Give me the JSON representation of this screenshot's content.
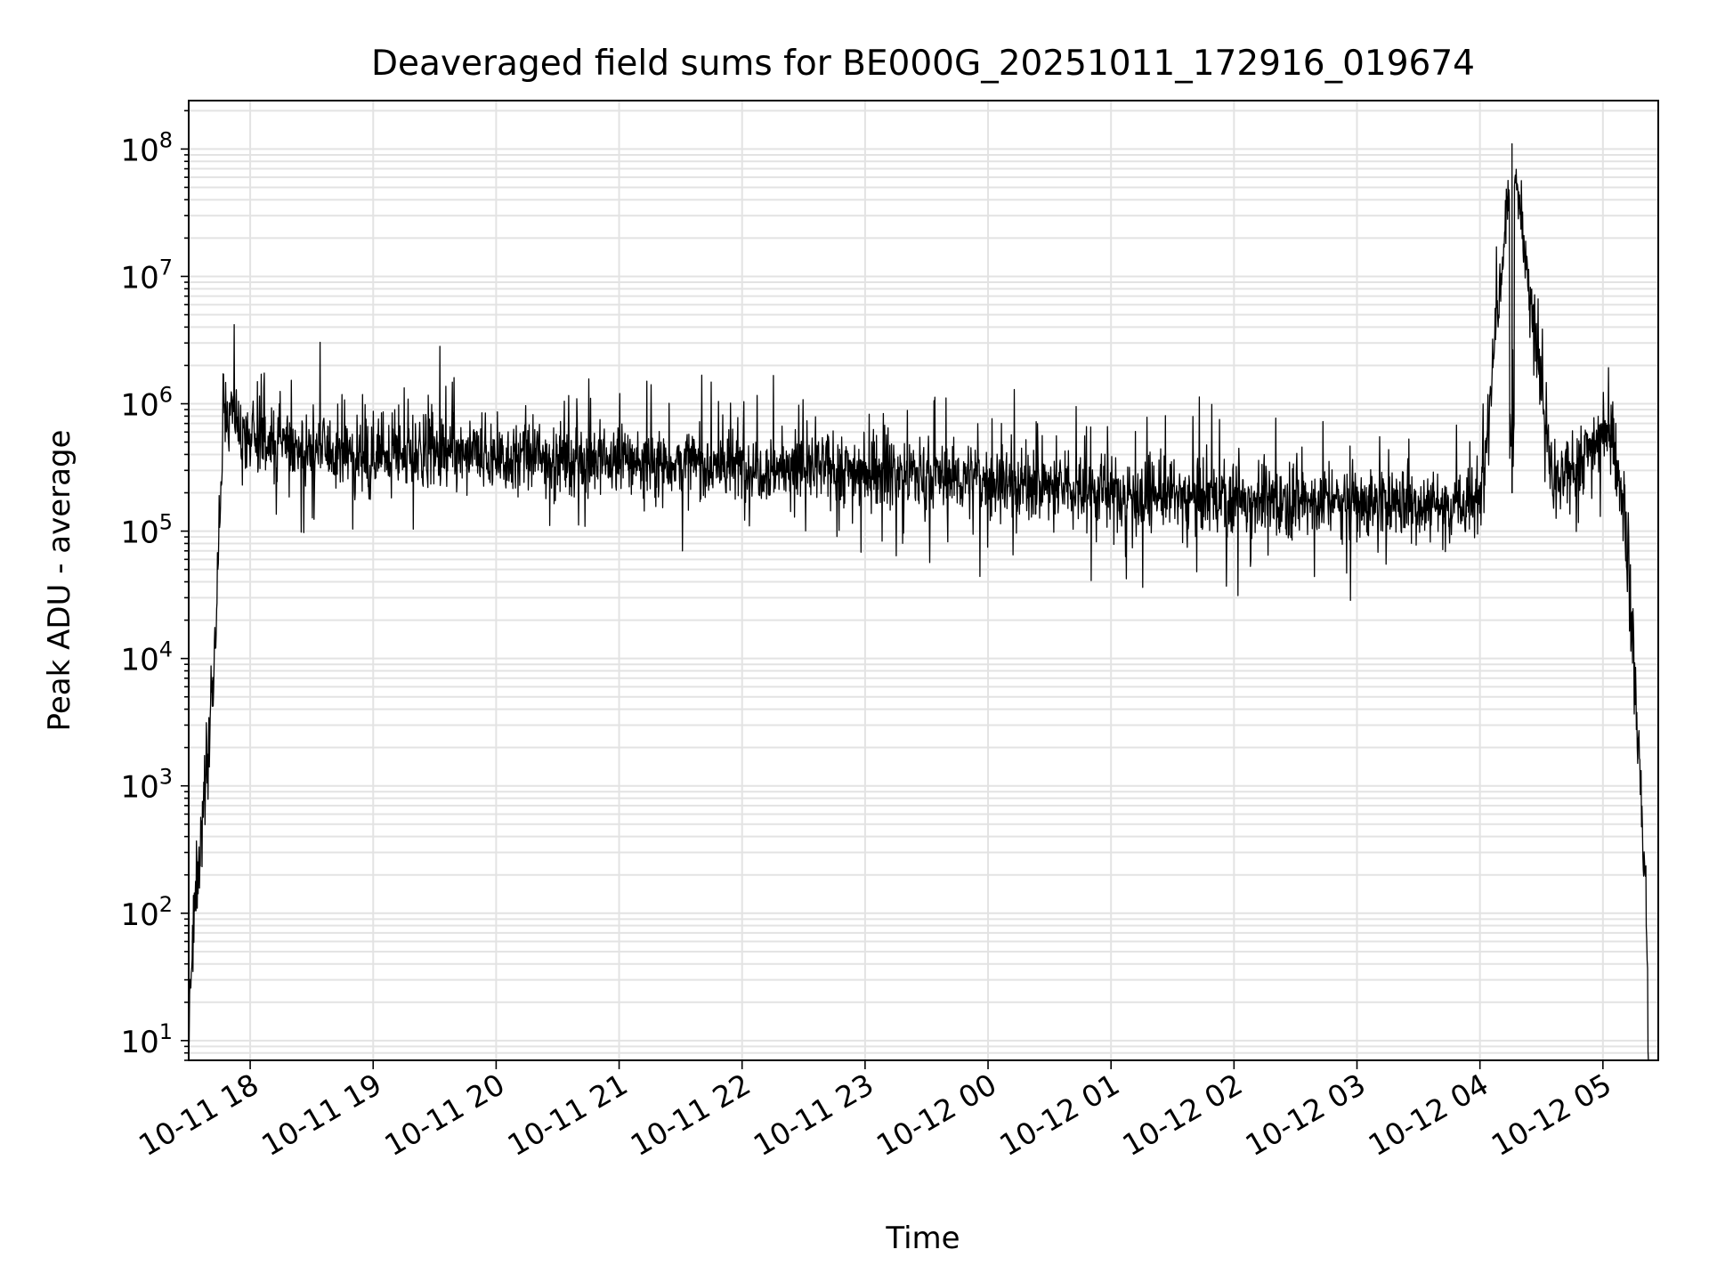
{
  "chart_data": {
    "type": "line",
    "title": "Deaveraged field sums for BE000G_20251011_172916_019674",
    "xlabel": "Time",
    "ylabel": "Peak ADU - average",
    "yscale": "log",
    "ylim": [
      7,
      240000000
    ],
    "xlim_hours_from_1800": [
      -0.5,
      11.45
    ],
    "x_ticks": [
      {
        "label": "10-11 18",
        "value": 0
      },
      {
        "label": "10-11 19",
        "value": 1
      },
      {
        "label": "10-11 20",
        "value": 2
      },
      {
        "label": "10-11 21",
        "value": 3
      },
      {
        "label": "10-11 22",
        "value": 4
      },
      {
        "label": "10-11 23",
        "value": 5
      },
      {
        "label": "10-12 00",
        "value": 6
      },
      {
        "label": "10-12 01",
        "value": 7
      },
      {
        "label": "10-12 02",
        "value": 8
      },
      {
        "label": "10-12 03",
        "value": 9
      },
      {
        "label": "10-12 04",
        "value": 10
      },
      {
        "label": "10-12 05",
        "value": 11
      }
    ],
    "y_ticks": [
      {
        "base": "10",
        "exp": "1",
        "value": 10
      },
      {
        "base": "10",
        "exp": "2",
        "value": 100
      },
      {
        "base": "10",
        "exp": "3",
        "value": 1000
      },
      {
        "base": "10",
        "exp": "4",
        "value": 10000
      },
      {
        "base": "10",
        "exp": "5",
        "value": 100000
      },
      {
        "base": "10",
        "exp": "6",
        "value": 1000000
      },
      {
        "base": "10",
        "exp": "7",
        "value": 10000000
      },
      {
        "base": "10",
        "exp": "8",
        "value": 100000000
      }
    ],
    "grid": true,
    "series": [
      {
        "name": "field sums",
        "color": "#000000",
        "description_points": [
          {
            "x": -0.5,
            "y": 10
          },
          {
            "x": -0.45,
            "y": 150
          },
          {
            "x": -0.4,
            "y": 400
          },
          {
            "x": -0.35,
            "y": 1500
          },
          {
            "x": -0.3,
            "y": 8000
          },
          {
            "x": -0.25,
            "y": 100000
          },
          {
            "x": -0.22,
            "y": 700000
          },
          {
            "x": -0.15,
            "y": 850000
          },
          {
            "x": 0,
            "y": 500000
          },
          {
            "x": 1,
            "y": 400000
          },
          {
            "x": 2,
            "y": 380000
          },
          {
            "x": 3,
            "y": 360000
          },
          {
            "x": 4,
            "y": 320000
          },
          {
            "x": 5,
            "y": 300000
          },
          {
            "x": 6,
            "y": 250000
          },
          {
            "x": 7,
            "y": 200000
          },
          {
            "x": 8,
            "y": 180000
          },
          {
            "x": 9,
            "y": 170000
          },
          {
            "x": 10,
            "y": 160000
          },
          {
            "x": 10.26,
            "y": 110000000
          },
          {
            "x": 10.6,
            "y": 200000
          },
          {
            "x": 11.05,
            "y": 700000
          },
          {
            "x": 11.18,
            "y": 150000
          },
          {
            "x": 11.28,
            "y": 3000
          },
          {
            "x": 11.35,
            "y": 150
          },
          {
            "x": 11.37,
            "y": 8
          }
        ]
      }
    ]
  }
}
